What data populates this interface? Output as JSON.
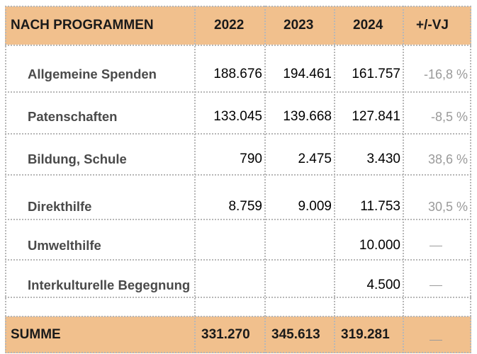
{
  "table": {
    "header": {
      "label": "NACH PROGRAMMEN",
      "y2022": "2022",
      "y2023": "2023",
      "y2024": "2024",
      "change": "+/-VJ"
    },
    "rows": [
      {
        "label": "Allgemeine Spenden",
        "y2022": "188.676",
        "y2023": "194.461",
        "y2024": "161.757",
        "change": "-16,8 %"
      },
      {
        "label": "Patenschaften",
        "y2022": "133.045",
        "y2023": "139.668",
        "y2024": "127.841",
        "change": "-8,5 %"
      },
      {
        "label": "Bildung, Schule",
        "y2022": "790",
        "y2023": "2.475",
        "y2024": "3.430",
        "change": "38,6 %"
      },
      {
        "label": "Direkthilfe",
        "y2022": "8.759",
        "y2023": "9.009",
        "y2024": "11.753",
        "change": "30,5 %"
      },
      {
        "label": "Umwelthilfe",
        "y2022": "",
        "y2023": "",
        "y2024": "10.000",
        "change": "—"
      },
      {
        "label": "Interkulturelle Begegnung",
        "y2022": "",
        "y2023": "",
        "y2024": "4.500",
        "change": "—"
      }
    ],
    "footer": {
      "label": "SUMME",
      "y2022": "331.270",
      "y2023": "345.613",
      "y2024": "319.281",
      "change": "—"
    }
  }
}
